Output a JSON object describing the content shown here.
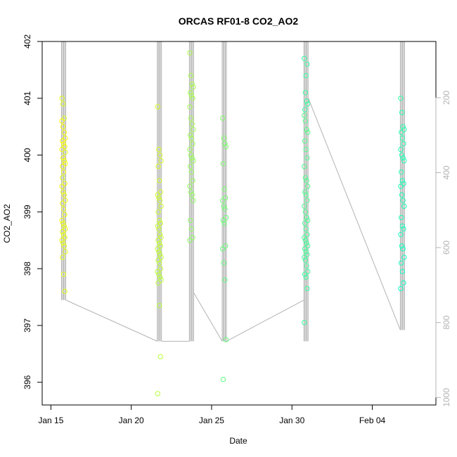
{
  "chart_data": {
    "type": "scatter",
    "title": "ORCAS RF01-8 CO2_AO2",
    "xlabel": "Date",
    "ylabel": "CO2_AO2",
    "xlim": [
      "2016-01-14T11:00",
      "2016-02-07T23:00"
    ],
    "ylim": [
      395.6,
      402.0
    ],
    "x_ticks": [
      {
        "label": "Jan 15",
        "value": "2016-01-15"
      },
      {
        "label": "Jan 20",
        "value": "2016-01-20"
      },
      {
        "label": "Jan 25",
        "value": "2016-01-25"
      },
      {
        "label": "Jan 30",
        "value": "2016-01-30"
      },
      {
        "label": "Feb 04",
        "value": "2016-02-04"
      }
    ],
    "y_ticks": [
      "396",
      "397",
      "398",
      "399",
      "400",
      "401",
      "402"
    ],
    "secondary_axis": {
      "side": "right",
      "color": "#b3b3b3",
      "ticks": [
        "200",
        "400",
        "600",
        "800",
        "1000"
      ],
      "range": [
        50,
        1020
      ],
      "inverted": true
    },
    "grid": false,
    "point_style": "open-circle",
    "point_color_start": "#ffff00",
    "point_color_end": "#00ffcc",
    "secondary_line_color": "#b3b3b3",
    "series": [
      {
        "x": "2016-01-15T19:00",
        "values": [
          400.6,
          400.5,
          400.4,
          400.3,
          400.25,
          400.2,
          400.15,
          400.1,
          399.95,
          399.9,
          399.85,
          399.8,
          399.7,
          399.5,
          399.45,
          399.35,
          399.3,
          399.2,
          399.15,
          399.05,
          398.95,
          398.85,
          398.8,
          398.75,
          398.7,
          398.65,
          398.6,
          398.55,
          398.5,
          398.45,
          398.4,
          398.3,
          398.2,
          397.9,
          397.6,
          401.0,
          400.9,
          400.65,
          400.05,
          399.6
        ]
      },
      {
        "x": "2016-01-21T18:00",
        "values": [
          400.85,
          400.1,
          400.0,
          399.9,
          399.8,
          399.55,
          399.35,
          399.3,
          399.25,
          399.2,
          399.1,
          399.0,
          398.85,
          398.8,
          398.75,
          398.7,
          398.6,
          398.55,
          398.5,
          398.45,
          398.4,
          398.35,
          398.3,
          398.25,
          398.2,
          398.15,
          398.1,
          398.0,
          397.95,
          397.9,
          397.85,
          397.8,
          397.75,
          397.35,
          396.45,
          395.8
        ]
      },
      {
        "x": "2016-01-23T18:00",
        "values": [
          401.8,
          401.4,
          401.25,
          401.2,
          401.1,
          401.05,
          401.0,
          400.85,
          400.65,
          400.55,
          400.45,
          400.35,
          400.3,
          400.2,
          400.1,
          400.0,
          399.95,
          399.9,
          399.8,
          399.7,
          399.55,
          399.45,
          399.35,
          399.3,
          399.2,
          398.85,
          398.7,
          398.55,
          398.5
        ]
      },
      {
        "x": "2016-01-25T19:00",
        "values": [
          400.65,
          400.3,
          400.2,
          400.15,
          399.85,
          399.4,
          399.25,
          399.2,
          399.1,
          399.05,
          398.9,
          398.85,
          398.8,
          398.4,
          398.35,
          398.1,
          397.8,
          396.75,
          396.05
        ]
      },
      {
        "x": "2016-01-30T21:00",
        "values": [
          400.7,
          400.6,
          400.45,
          400.4,
          400.25,
          400.1,
          399.95,
          399.8,
          399.6,
          399.55,
          399.45,
          399.35,
          399.3,
          399.2,
          399.1,
          399.0,
          398.9,
          398.85,
          398.8,
          398.7,
          398.6,
          398.55,
          398.5,
          398.45,
          398.4,
          398.35,
          398.3,
          398.25,
          398.2,
          398.15,
          398.05,
          397.95,
          397.9,
          397.85,
          397.65,
          397.05,
          401.1,
          400.95,
          400.9,
          400.8,
          401.4,
          401.6,
          401.7
        ]
      },
      {
        "x": "2016-02-05T21:00",
        "values": [
          401.0,
          400.75,
          400.5,
          400.45,
          400.4,
          400.3,
          400.2,
          400.1,
          400.0,
          399.95,
          399.9,
          399.7,
          399.55,
          399.5,
          399.45,
          399.3,
          399.2,
          399.1,
          398.9,
          398.75,
          398.7,
          398.6,
          398.4,
          398.35,
          398.2,
          398.1,
          397.95,
          397.75,
          397.65
        ]
      }
    ]
  }
}
